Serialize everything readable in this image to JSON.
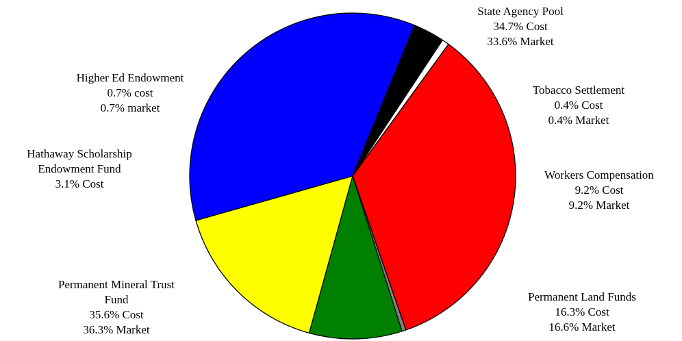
{
  "chart_data": {
    "type": "pie",
    "title": "",
    "start_angle_deg": -54,
    "slices": [
      {
        "name": "State Agency Pool",
        "value": 34.7,
        "color": "#FF0000",
        "label_lines": [
          "State Agency Pool",
          "34.7% Cost",
          "33.6% Market"
        ]
      },
      {
        "name": "Tobacco Settlement",
        "value": 0.4,
        "color": "#808080",
        "label_lines": [
          "Tobacco Settlement",
          "0.4% Cost",
          "0.4% Market"
        ]
      },
      {
        "name": "Workers Compensation",
        "value": 9.2,
        "color": "#008000",
        "label_lines": [
          "Workers Compensation",
          "9.2% Cost",
          "9.2% Market"
        ]
      },
      {
        "name": "Permanent Land Funds",
        "value": 16.3,
        "color": "#FFFF00",
        "label_lines": [
          "Permanent Land Funds",
          "16.3% Cost",
          "16.6% Market"
        ]
      },
      {
        "name": "Permanent Mineral Trust Fund",
        "value": 35.6,
        "color": "#0000FF",
        "label_lines": [
          "Permanent Mineral Trust",
          "Fund",
          "35.6% Cost",
          "36.3% Market"
        ]
      },
      {
        "name": "Hathaway Scholarship Endowment Fund",
        "value": 3.1,
        "color": "#000000",
        "label_lines": [
          "Hathaway Scholarship",
          "Endowment Fund",
          "3.1% Cost"
        ]
      },
      {
        "name": "Higher Ed Endowment",
        "value": 0.7,
        "color": "#FFFFFF",
        "label_lines": [
          "Higher Ed Endowment",
          "0.7% cost",
          "0.7% market"
        ]
      }
    ]
  }
}
